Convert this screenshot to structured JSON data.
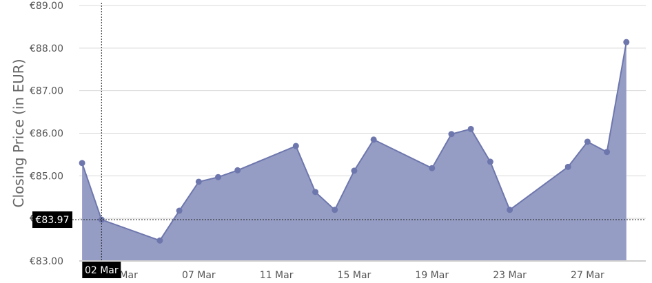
{
  "chart_data": {
    "type": "area",
    "ylabel": "Closing Price (in EUR)",
    "ylim": [
      83,
      89
    ],
    "y_ticks": [
      83,
      84,
      85,
      86,
      87,
      88,
      89
    ],
    "y_tick_labels": [
      "€83.00",
      "€84.00",
      "€85.00",
      "€86.00",
      "€87.00",
      "€88.00",
      "€89.00"
    ],
    "x_range": [
      "2024-03-01",
      "2024-03-30"
    ],
    "x_tick_dates": [
      "2024-03-03",
      "2024-03-07",
      "2024-03-11",
      "2024-03-15",
      "2024-03-19",
      "2024-03-23",
      "2024-03-27"
    ],
    "x_tick_labels": [
      "03 Mar",
      "07 Mar",
      "11 Mar",
      "15 Mar",
      "19 Mar",
      "23 Mar",
      "27 Mar"
    ],
    "series": [
      {
        "x": [
          "2024-03-01",
          "2024-03-02",
          "2024-03-05",
          "2024-03-06",
          "2024-03-07",
          "2024-03-08",
          "2024-03-09",
          "2024-03-12",
          "2024-03-13",
          "2024-03-14",
          "2024-03-15",
          "2024-03-16",
          "2024-03-19",
          "2024-03-20",
          "2024-03-21",
          "2024-03-22",
          "2024-03-23",
          "2024-03-26",
          "2024-03-27",
          "2024-03-28",
          "2024-03-29"
        ],
        "y": [
          85.3,
          83.97,
          83.48,
          84.18,
          84.86,
          84.97,
          85.13,
          85.7,
          84.62,
          84.2,
          85.12,
          85.85,
          85.18,
          85.98,
          86.1,
          85.33,
          84.2,
          85.21,
          85.8,
          85.56,
          88.14
        ]
      }
    ],
    "grid": true,
    "tooltip": {
      "date_label": "02 Mar",
      "value_label": "€83.97",
      "x": "2024-03-02",
      "y": 83.97
    },
    "colors": {
      "area_fill": "#959dc4",
      "line": "#6e77ad",
      "grid": "#d9d9d9",
      "tooltip_bg": "#000000"
    }
  }
}
